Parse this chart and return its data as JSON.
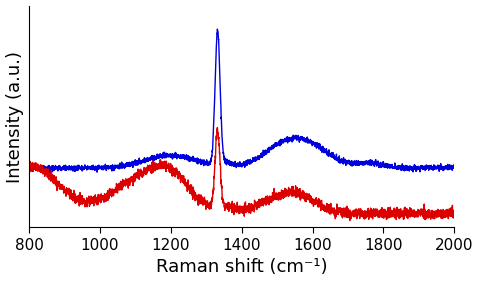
{
  "xlabel": "Raman shift (cm⁻¹)",
  "ylabel": "Intensity (a.u.)",
  "xmin": 800,
  "xmax": 2000,
  "xticks": [
    800,
    1000,
    1200,
    1400,
    1600,
    1800,
    2000
  ],
  "line_color_blue": "#0000dd",
  "line_color_red": "#dd0000",
  "line_width": 1.0,
  "background_color": "#ffffff",
  "seed": 42,
  "xlabel_fontsize": 13,
  "ylabel_fontsize": 13,
  "tick_fontsize": 11
}
